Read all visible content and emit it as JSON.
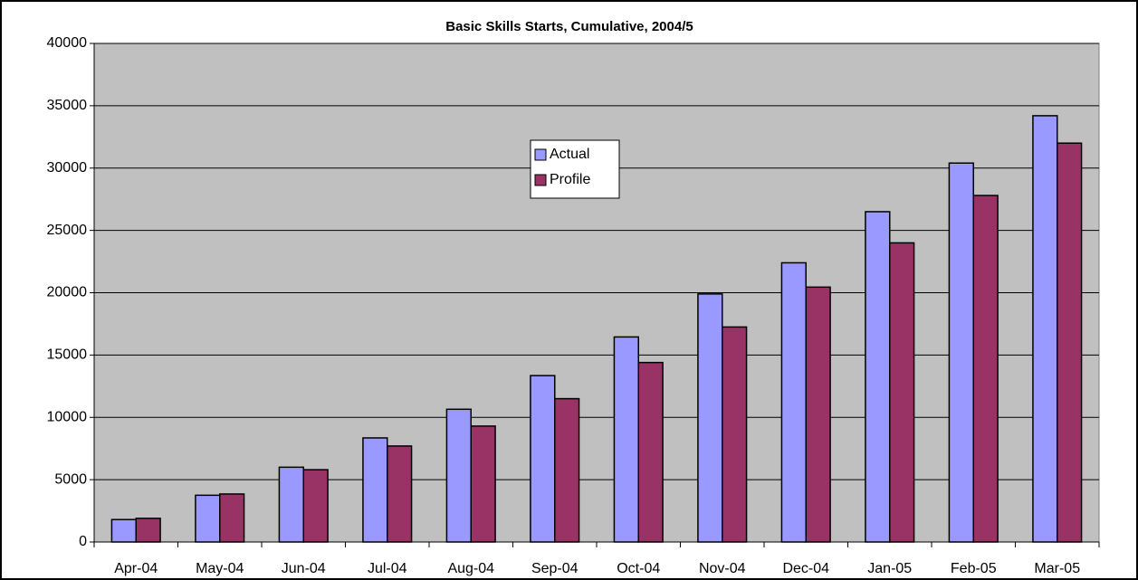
{
  "chart_data": {
    "type": "bar",
    "title": "Basic Skills Starts, Cumulative, 2004/5",
    "categories": [
      "Apr-04",
      "May-04",
      "Jun-04",
      "Jul-04",
      "Aug-04",
      "Sep-04",
      "Oct-04",
      "Nov-04",
      "Dec-04",
      "Jan-05",
      "Feb-05",
      "Mar-05"
    ],
    "series": [
      {
        "name": "Actual",
        "color": "#9999ff",
        "values": [
          1800,
          3750,
          6000,
          8350,
          10650,
          13350,
          16450,
          19900,
          22400,
          26500,
          30400,
          34200
        ]
      },
      {
        "name": "Profile",
        "color": "#993366",
        "values": [
          1900,
          3850,
          5800,
          7700,
          9300,
          11500,
          14400,
          17250,
          20450,
          24000,
          27800,
          32000
        ]
      }
    ],
    "ylim": [
      0,
      40000
    ],
    "yticks": [
      0,
      5000,
      10000,
      15000,
      20000,
      25000,
      30000,
      35000,
      40000
    ],
    "grid": true,
    "legend": "upper center",
    "plot_background": "#c0c0c0"
  }
}
